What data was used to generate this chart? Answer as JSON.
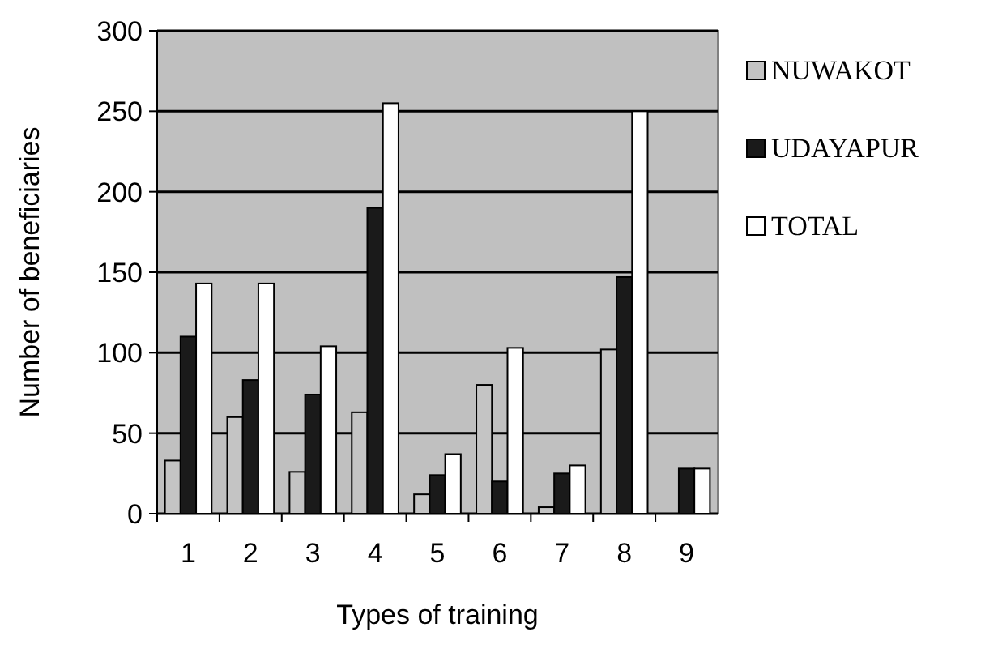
{
  "chart_data": {
    "type": "bar",
    "xlabel": "Types of training",
    "ylabel": "Number of beneficiaries",
    "categories": [
      "1",
      "2",
      "3",
      "4",
      "5",
      "6",
      "7",
      "8",
      "9"
    ],
    "series": [
      {
        "name": "NUWAKOT",
        "color": "#c4c4c4",
        "values": [
          33,
          60,
          26,
          63,
          12,
          80,
          4,
          102,
          0
        ]
      },
      {
        "name": "UDAYAPUR",
        "color": "#1a1a1a",
        "values": [
          110,
          83,
          74,
          190,
          24,
          20,
          25,
          147,
          28
        ]
      },
      {
        "name": "TOTAL",
        "color": "#ffffff",
        "values": [
          143,
          143,
          104,
          255,
          37,
          103,
          30,
          250,
          28
        ]
      }
    ],
    "ylim": [
      0,
      300
    ],
    "yticks": [
      0,
      50,
      100,
      150,
      200,
      250,
      300
    ],
    "grid": "y",
    "legend": "top right"
  }
}
